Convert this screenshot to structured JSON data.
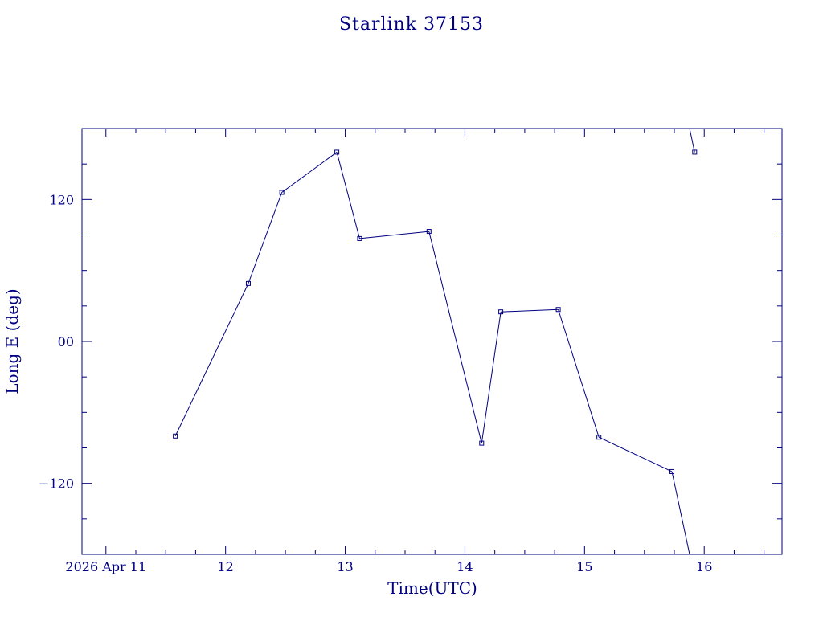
{
  "chart_data": {
    "type": "line",
    "title": "Starlink 37153",
    "xlabel": "Time(UTC)",
    "ylabel": "Long E (deg)",
    "xlim": [
      10.8,
      16.65
    ],
    "ylim": [
      -180,
      180
    ],
    "x_ticks": [
      {
        "value": 11,
        "label": "2026 Apr 11"
      },
      {
        "value": 12,
        "label": "12"
      },
      {
        "value": 13,
        "label": "13"
      },
      {
        "value": 14,
        "label": "14"
      },
      {
        "value": 15,
        "label": "15"
      },
      {
        "value": 16,
        "label": "16"
      }
    ],
    "x_minor_step": 0.25,
    "y_ticks": [
      {
        "value": 120,
        "label": "120"
      },
      {
        "value": 0,
        "label": "00"
      },
      {
        "value": -120,
        "label": "−120"
      }
    ],
    "y_minor_step": 30,
    "grid": false,
    "color": "#000080",
    "series": [
      {
        "points": [
          {
            "x": 11.58,
            "y": -80
          },
          {
            "x": 12.19,
            "y": 49
          },
          {
            "x": 12.47,
            "y": 126
          },
          {
            "x": 12.93,
            "y": 160
          },
          {
            "x": 13.12,
            "y": 87
          },
          {
            "x": 13.7,
            "y": 93
          },
          {
            "x": 14.14,
            "y": -86
          },
          {
            "x": 14.3,
            "y": 25
          },
          {
            "x": 14.78,
            "y": 27
          },
          {
            "x": 15.12,
            "y": -81
          },
          {
            "x": 15.73,
            "y": -110
          },
          {
            "x": 15.92,
            "y": 160
          }
        ]
      }
    ]
  }
}
